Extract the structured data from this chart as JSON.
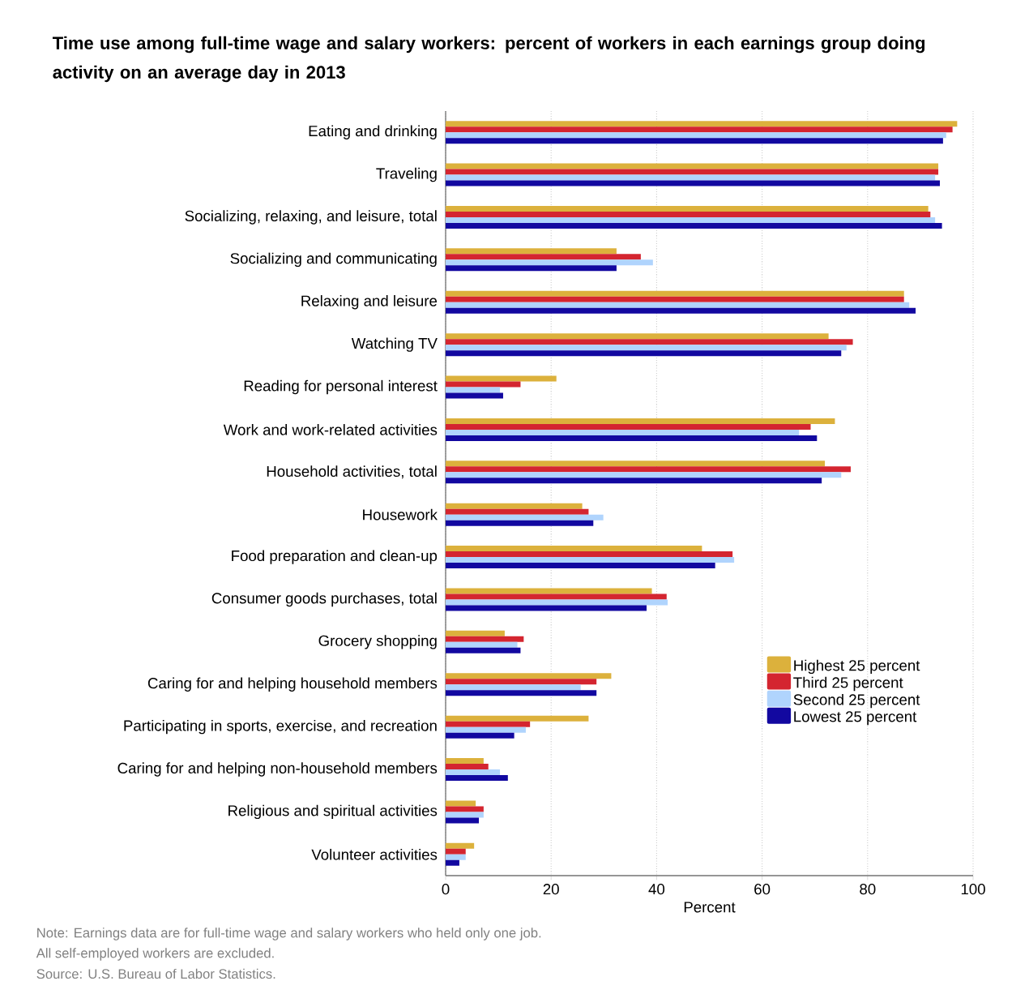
{
  "chart_data": {
    "type": "bar",
    "orientation": "horizontal",
    "title": "Time use among full-time wage and salary workers: percent of workers in each earnings group doing activity on an average day in 2013",
    "xlabel": "Percent",
    "categories": [
      "Eating and drinking",
      "Traveling",
      "Socializing, relaxing, and leisure, total",
      "Socializing and communicating",
      "Relaxing and leisure",
      "Watching TV",
      "Reading for personal interest",
      "Work and work-related activities",
      "Household activities, total",
      "Housework",
      "Food preparation and clean-up",
      "Consumer goods purchases, total",
      "Grocery shopping",
      "Caring for and helping household members",
      "Participating in sports, exercise, and recreation",
      "Caring for and helping non-household members",
      "Religious and spiritual activities",
      "Volunteer activities"
    ],
    "series": [
      {
        "name": "Highest 25 percent",
        "color": "#dcb13c",
        "values": [
          97.0,
          93.4,
          91.5,
          32.4,
          86.9,
          72.6,
          21.0,
          73.8,
          71.9,
          25.9,
          48.6,
          39.1,
          11.2,
          31.4,
          27.1,
          7.2,
          5.7,
          5.4
        ]
      },
      {
        "name": "Third 25 percent",
        "color": "#d42530",
        "values": [
          96.1,
          93.4,
          91.9,
          37.0,
          86.9,
          77.2,
          14.2,
          69.2,
          76.8,
          27.1,
          54.4,
          41.9,
          14.8,
          28.6,
          16.0,
          8.1,
          7.2,
          3.8
        ]
      },
      {
        "name": "Second 25 percent",
        "color": "#b0d4fd",
        "values": [
          94.9,
          92.8,
          92.8,
          39.3,
          87.9,
          76.0,
          10.3,
          67.0,
          75.0,
          29.9,
          54.7,
          42.1,
          13.6,
          25.6,
          15.2,
          10.3,
          7.2,
          3.8
        ]
      },
      {
        "name": "Lowest 25 percent",
        "color": "#1208a0",
        "values": [
          94.3,
          93.7,
          94.1,
          32.4,
          89.1,
          75.0,
          10.9,
          70.4,
          71.3,
          28.0,
          51.1,
          38.1,
          14.2,
          28.6,
          13.0,
          11.8,
          6.3,
          2.6
        ]
      }
    ],
    "xlim": [
      0,
      100
    ],
    "xticks": [
      0,
      20,
      40,
      60,
      80,
      100
    ],
    "grid": "x",
    "legend": "right",
    "annotations": [
      "Note: Earnings data are for full-time wage and salary workers who held only one job.",
      "All self-employed workers are excluded.",
      "Source: U.S. Bureau of Labor Statistics."
    ]
  }
}
